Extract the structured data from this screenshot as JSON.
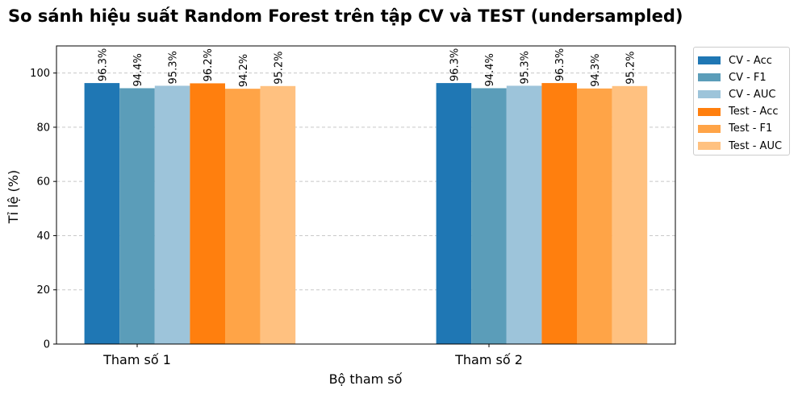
{
  "chart_data": {
    "type": "bar",
    "title": "So sánh hiệu suất Random Forest trên tập CV và TEST (undersampled)",
    "xlabel": "Bộ tham số",
    "ylabel": "Tỉ lệ (%)",
    "ylim": [
      0,
      110
    ],
    "yticks": [
      "0",
      "20",
      "40",
      "60",
      "80",
      "100"
    ],
    "grid": "y-dashed",
    "legend_position": "outside-top-right",
    "categories": [
      "Tham số 1",
      "Tham số 2"
    ],
    "series": [
      {
        "name": "CV - Acc",
        "color": "#1f77b4",
        "values": [
          96.3,
          96.3
        ],
        "labels": [
          "96.3%",
          "96.3%"
        ]
      },
      {
        "name": "CV - F1",
        "color": "#5b9db9",
        "values": [
          94.4,
          94.4
        ],
        "labels": [
          "94.4%",
          "94.4%"
        ]
      },
      {
        "name": "CV - AUC",
        "color": "#9dc4da",
        "values": [
          95.3,
          95.3
        ],
        "labels": [
          "95.3%",
          "95.3%"
        ]
      },
      {
        "name": "Test - Acc",
        "color": "#ff7f0e",
        "values": [
          96.2,
          96.3
        ],
        "labels": [
          "96.2%",
          "96.3%"
        ]
      },
      {
        "name": "Test - F1",
        "color": "#ffa447",
        "values": [
          94.2,
          94.3
        ],
        "labels": [
          "94.2%",
          "94.3%"
        ]
      },
      {
        "name": "Test - AUC",
        "color": "#ffc180",
        "values": [
          95.2,
          95.2
        ],
        "labels": [
          "95.2%",
          "95.2%"
        ]
      }
    ]
  }
}
